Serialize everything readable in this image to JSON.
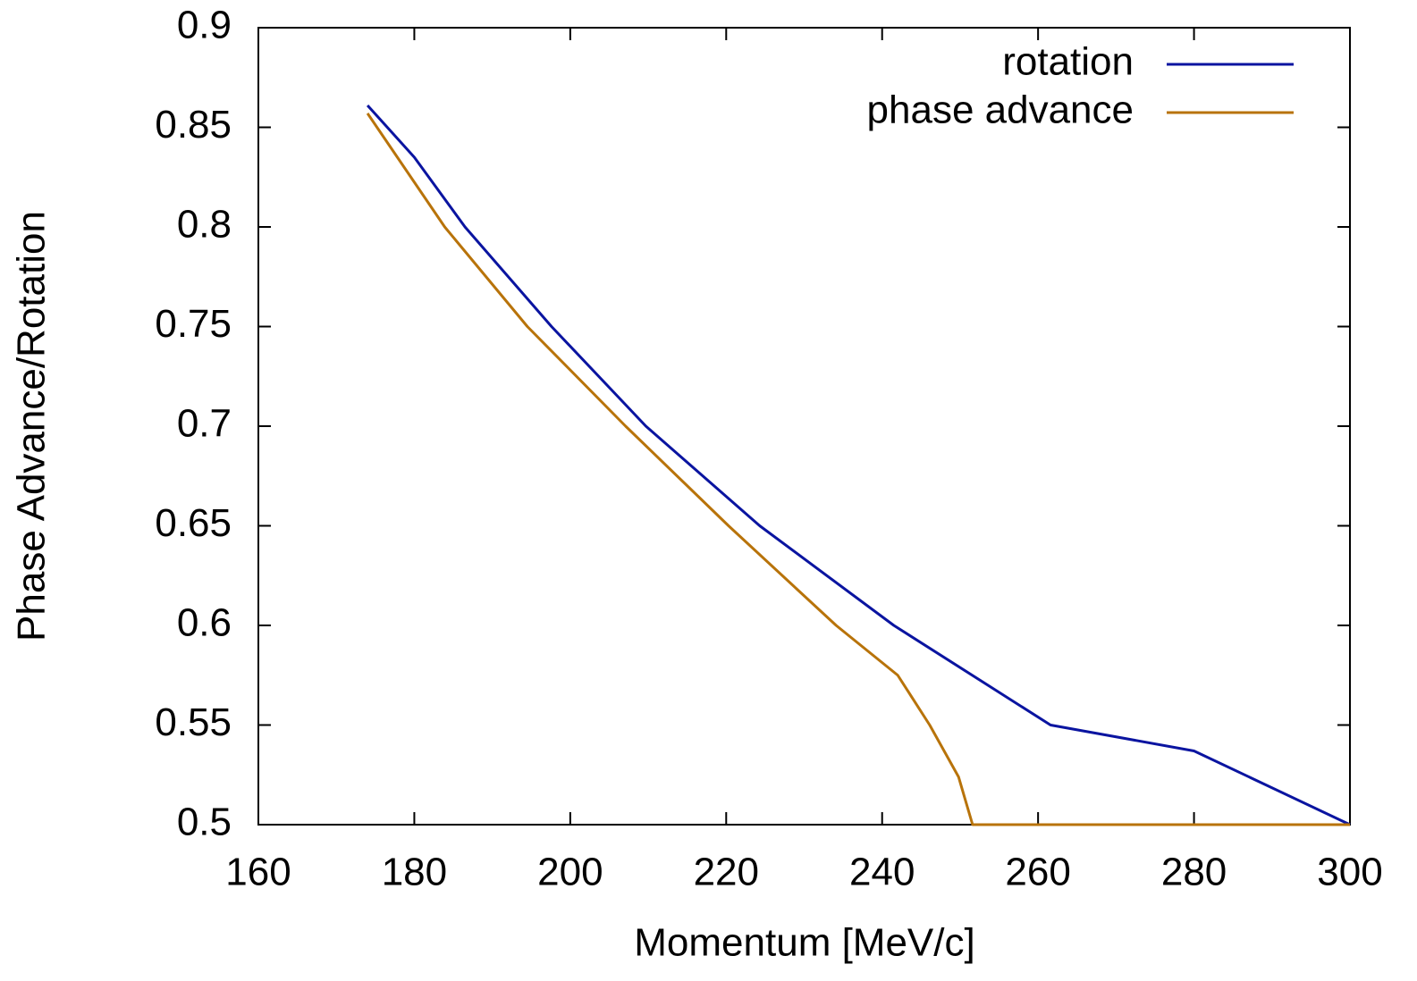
{
  "chart_data": {
    "type": "line",
    "x_label": "Momentum [MeV/c]",
    "y_label": "Phase Advance/Rotation",
    "xlim": [
      160,
      300
    ],
    "ylim": [
      0.5,
      0.9
    ],
    "xticks": [
      160,
      180,
      200,
      220,
      240,
      260,
      280,
      300
    ],
    "yticks": [
      0.5,
      0.55,
      0.6,
      0.65,
      0.7,
      0.75,
      0.8,
      0.85,
      0.9
    ],
    "legend": "top-right",
    "series": [
      {
        "name": "rotation",
        "color": "#0a14a0",
        "x": [
          174,
          180,
          186.5,
          197.6,
          209.7,
          224.3,
          241.5,
          261.6,
          280,
          300
        ],
        "values": [
          0.861,
          0.835,
          0.8,
          0.75,
          0.7,
          0.65,
          0.6,
          0.55,
          0.537,
          0.5
        ]
      },
      {
        "name": "phase advance",
        "color": "#b8730a",
        "x": [
          174,
          183.9,
          194.5,
          207.1,
          220.3,
          234.1,
          242,
          246.1,
          249.8,
          251.6,
          300
        ],
        "values": [
          0.857,
          0.8,
          0.75,
          0.7,
          0.65,
          0.6,
          0.575,
          0.55,
          0.524,
          0.5,
          0.5
        ]
      }
    ]
  }
}
